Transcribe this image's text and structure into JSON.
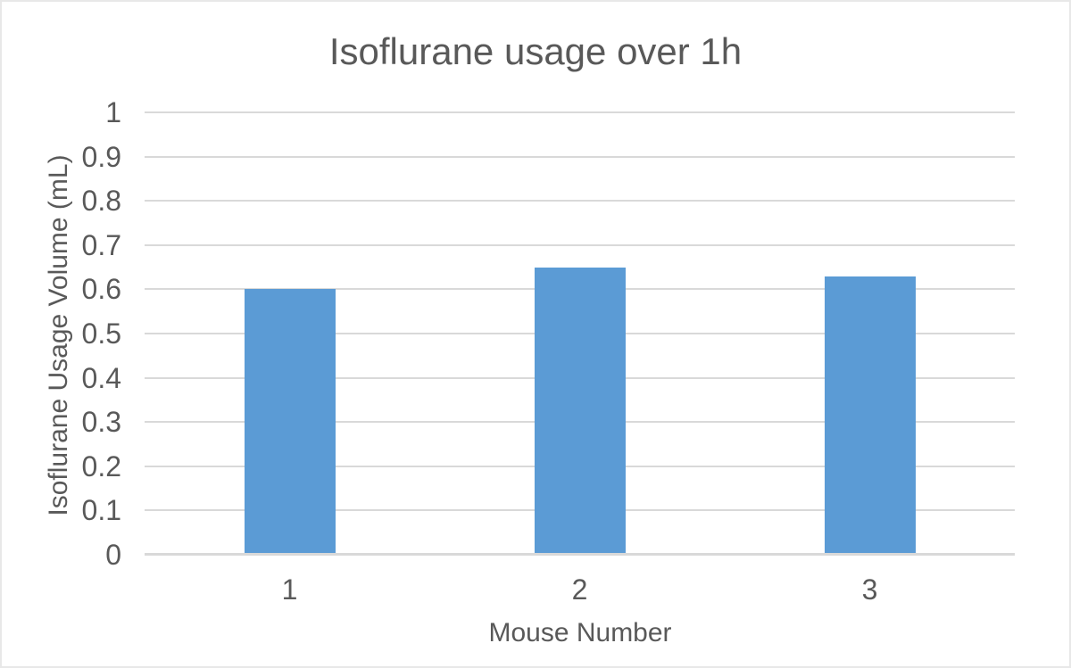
{
  "chart_data": {
    "type": "bar",
    "title": "Isoflurane usage over 1h",
    "xlabel": "Mouse Number",
    "ylabel": "Isoflurane Usage Volume (mL)",
    "categories": [
      "1",
      "2",
      "3"
    ],
    "values": [
      0.6,
      0.65,
      0.63
    ],
    "ylim": [
      0,
      1
    ],
    "y_tick_step": 0.1,
    "y_tick_labels": [
      "0",
      "0.1",
      "0.2",
      "0.3",
      "0.4",
      "0.5",
      "0.6",
      "0.7",
      "0.8",
      "0.9",
      "1"
    ],
    "grid": true,
    "legend_position": "none",
    "bar_color": "#5B9BD5",
    "gridline_color": "#D9D9D9",
    "axis_line_color": "#D9D9D9",
    "text_color": "#595959",
    "background_color": "#FFFFFF"
  }
}
